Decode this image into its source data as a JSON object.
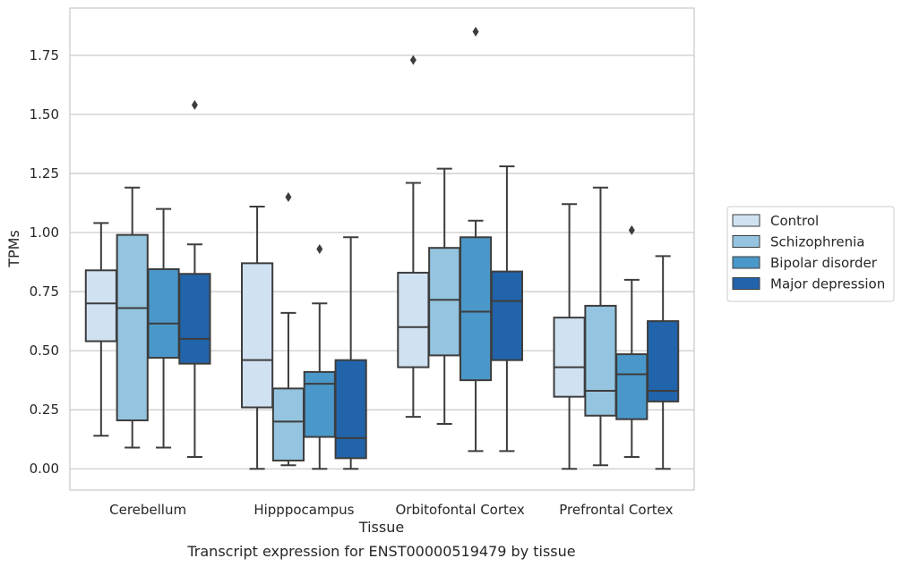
{
  "chart_data": {
    "type": "box",
    "caption": "Transcript expression for ENST00000519479 by tissue",
    "xlabel": "Tissue",
    "ylabel": "TPMs",
    "ylim": [
      -0.09,
      1.95
    ],
    "yticks": [
      0.0,
      0.25,
      0.5,
      0.75,
      1.0,
      1.25,
      1.5,
      1.75
    ],
    "ytick_labels": [
      "0.00",
      "0.25",
      "0.50",
      "0.75",
      "1.00",
      "1.25",
      "1.50",
      "1.75"
    ],
    "grid": "horizontal",
    "legend_position": "right",
    "categories": [
      "Cerebellum",
      "Hipppocampus",
      "Orbitofontal Cortex",
      "Prefrontal Cortex"
    ],
    "series": [
      {
        "name": "Control",
        "color": "#d0e1f2",
        "boxes": [
          {
            "whislo": 0.14,
            "q1": 0.54,
            "med": 0.7,
            "q3": 0.84,
            "whishi": 1.04,
            "fliers": []
          },
          {
            "whislo": 0.0,
            "q1": 0.26,
            "med": 0.46,
            "q3": 0.87,
            "whishi": 1.11,
            "fliers": []
          },
          {
            "whislo": 0.22,
            "q1": 0.43,
            "med": 0.6,
            "q3": 0.83,
            "whishi": 1.21,
            "fliers": [
              1.73
            ]
          },
          {
            "whislo": 0.0,
            "q1": 0.305,
            "med": 0.43,
            "q3": 0.64,
            "whishi": 1.12,
            "fliers": []
          }
        ]
      },
      {
        "name": "Schizophrenia",
        "color": "#94c4df",
        "boxes": [
          {
            "whislo": 0.09,
            "q1": 0.205,
            "med": 0.68,
            "q3": 0.99,
            "whishi": 1.19,
            "fliers": []
          },
          {
            "whislo": 0.015,
            "q1": 0.035,
            "med": 0.2,
            "q3": 0.34,
            "whishi": 0.66,
            "fliers": [
              1.15
            ]
          },
          {
            "whislo": 0.19,
            "q1": 0.48,
            "med": 0.715,
            "q3": 0.935,
            "whishi": 1.27,
            "fliers": []
          },
          {
            "whislo": 0.015,
            "q1": 0.225,
            "med": 0.33,
            "q3": 0.69,
            "whishi": 1.19,
            "fliers": []
          }
        ]
      },
      {
        "name": "Bipolar disorder",
        "color": "#4a98c9",
        "boxes": [
          {
            "whislo": 0.09,
            "q1": 0.47,
            "med": 0.615,
            "q3": 0.845,
            "whishi": 1.1,
            "fliers": []
          },
          {
            "whislo": 0.0,
            "q1": 0.135,
            "med": 0.36,
            "q3": 0.41,
            "whishi": 0.7,
            "fliers": [
              0.93
            ]
          },
          {
            "whislo": 0.075,
            "q1": 0.375,
            "med": 0.665,
            "q3": 0.98,
            "whishi": 1.05,
            "fliers": [
              1.85
            ]
          },
          {
            "whislo": 0.05,
            "q1": 0.21,
            "med": 0.4,
            "q3": 0.485,
            "whishi": 0.8,
            "fliers": [
              1.01
            ]
          }
        ]
      },
      {
        "name": "Major depression",
        "color": "#2164ab",
        "boxes": [
          {
            "whislo": 0.05,
            "q1": 0.445,
            "med": 0.55,
            "q3": 0.825,
            "whishi": 0.95,
            "fliers": [
              1.54
            ]
          },
          {
            "whislo": 0.0,
            "q1": 0.045,
            "med": 0.13,
            "q3": 0.46,
            "whishi": 0.98,
            "fliers": []
          },
          {
            "whislo": 0.075,
            "q1": 0.46,
            "med": 0.71,
            "q3": 0.835,
            "whishi": 1.28,
            "fliers": []
          },
          {
            "whislo": 0.0,
            "q1": 0.285,
            "med": 0.33,
            "q3": 0.625,
            "whishi": 0.9,
            "fliers": []
          }
        ]
      }
    ]
  }
}
